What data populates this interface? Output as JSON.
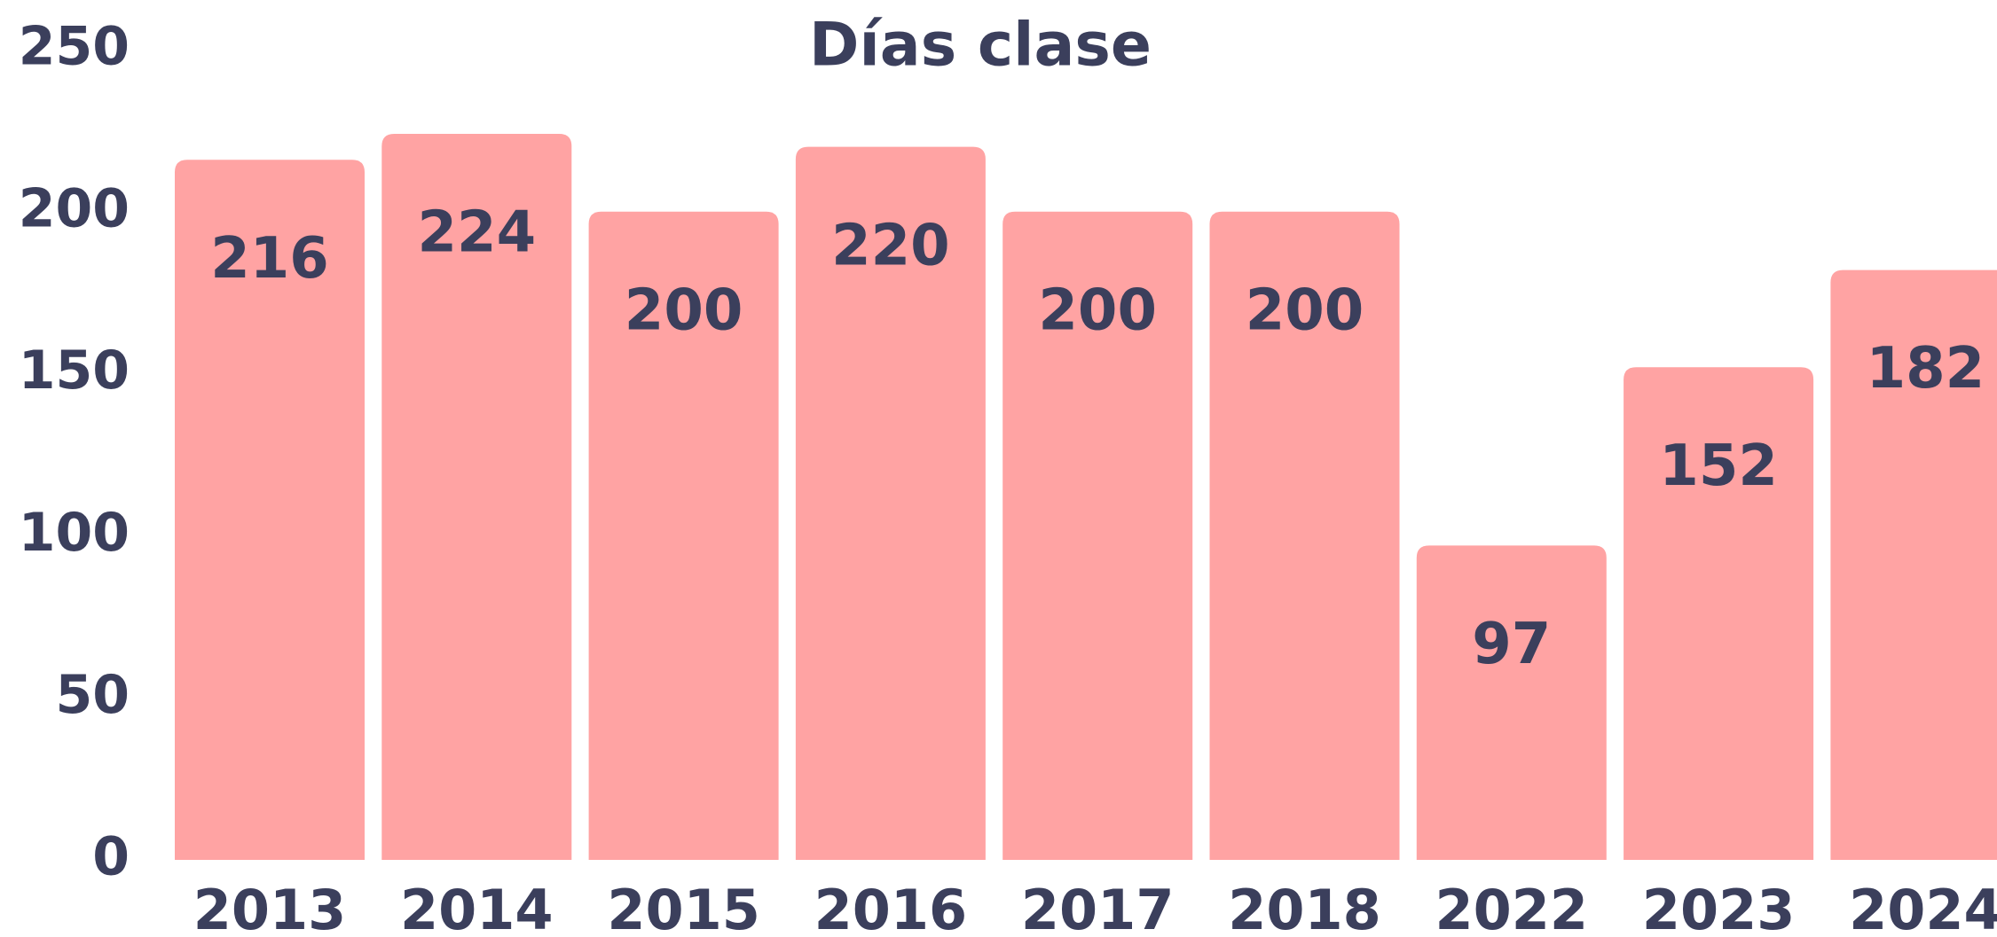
{
  "chart_data": {
    "type": "bar",
    "title": "Días clase",
    "categories": [
      "2013",
      "2014",
      "2015",
      "2016",
      "2017",
      "2018",
      "2022",
      "2023",
      "2024"
    ],
    "values": [
      216,
      224,
      200,
      220,
      200,
      200,
      97,
      152,
      182
    ],
    "color": "#ffa3a3",
    "ylim": [
      0,
      250
    ],
    "yticks": [
      0,
      50,
      100,
      150,
      200,
      250
    ],
    "grid": false
  }
}
